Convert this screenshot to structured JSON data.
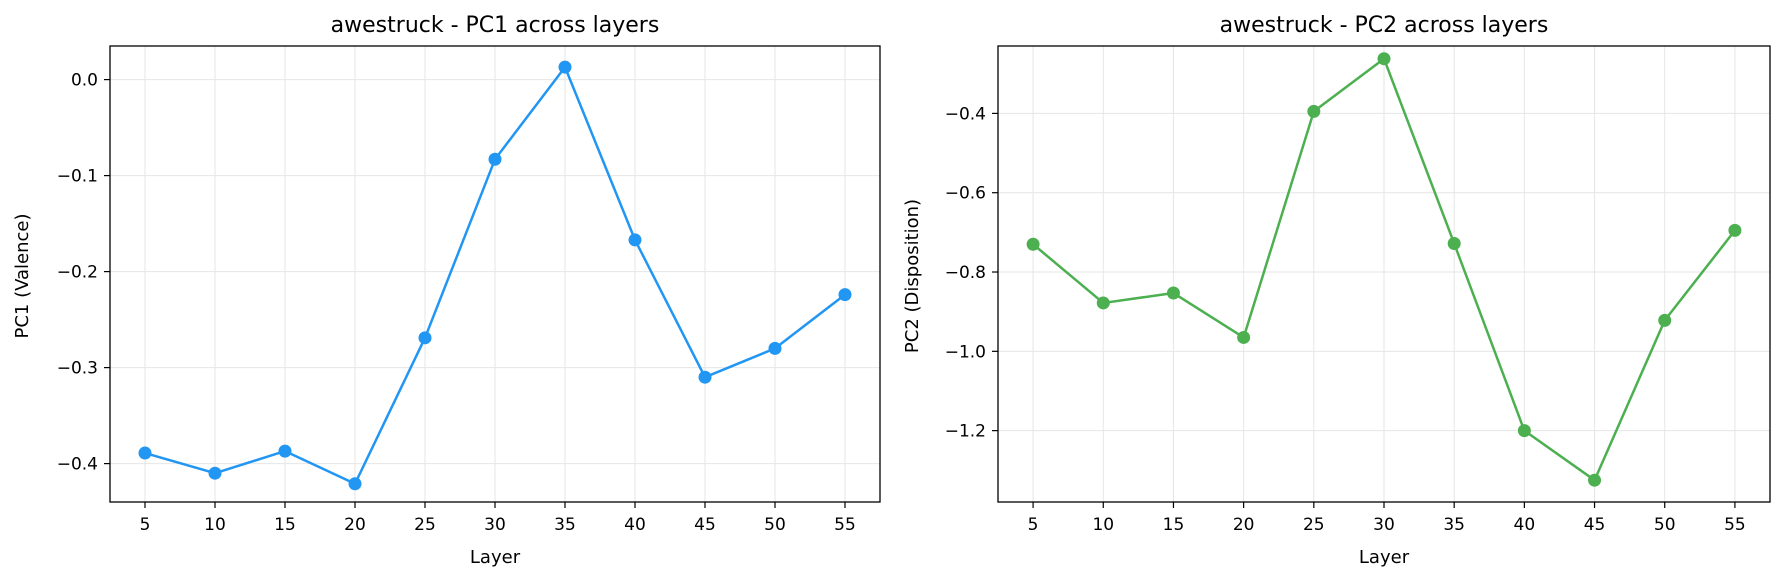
{
  "chart_data": [
    {
      "type": "line",
      "title": "awestruck - PC1 across layers",
      "xlabel": "Layer",
      "ylabel": "PC1 (Valence)",
      "x": [
        5,
        10,
        15,
        20,
        25,
        30,
        35,
        40,
        45,
        50,
        55
      ],
      "series": [
        {
          "values": [
            -0.389,
            -0.41,
            -0.387,
            -0.421,
            -0.269,
            -0.083,
            0.013,
            -0.167,
            -0.31,
            -0.28,
            -0.224
          ],
          "color": "#2196f3"
        }
      ],
      "xlim": [
        2.5,
        57.5
      ],
      "ylim": [
        -0.44,
        0.035
      ],
      "xticks": [
        5,
        10,
        15,
        20,
        25,
        30,
        35,
        40,
        45,
        50,
        55
      ],
      "yticks": [
        0.0,
        -0.1,
        -0.2,
        -0.3,
        -0.4
      ],
      "ytick_labels": [
        "0.0",
        "−0.1",
        "−0.2",
        "−0.3",
        "−0.4"
      ],
      "grid": true
    },
    {
      "type": "line",
      "title": "awestruck - PC2 across layers",
      "xlabel": "Layer",
      "ylabel": "PC2 (Disposition)",
      "x": [
        5,
        10,
        15,
        20,
        25,
        30,
        35,
        40,
        45,
        50,
        55
      ],
      "series": [
        {
          "values": [
            -0.73,
            -0.878,
            -0.853,
            -0.965,
            -0.395,
            -0.262,
            -0.728,
            -1.2,
            -1.325,
            -0.922,
            -0.695
          ],
          "color": "#4caf50"
        }
      ],
      "xlim": [
        2.5,
        57.5
      ],
      "ylim": [
        -1.38,
        -0.23
      ],
      "xticks": [
        5,
        10,
        15,
        20,
        25,
        30,
        35,
        40,
        45,
        50,
        55
      ],
      "yticks": [
        -0.4,
        -0.6,
        -0.8,
        -1.0,
        -1.2
      ],
      "ytick_labels": [
        "−0.4",
        "−0.6",
        "−0.8",
        "−1.0",
        "−1.2"
      ],
      "grid": true
    }
  ]
}
